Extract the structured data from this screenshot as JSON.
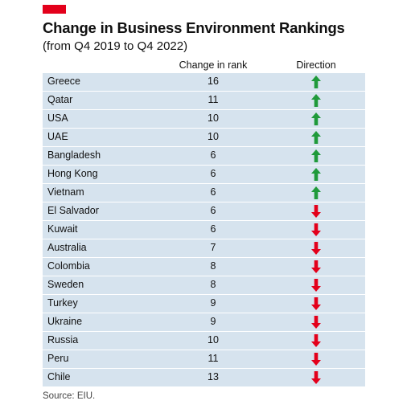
{
  "chart_data": {
    "type": "table",
    "title": "Change in Business Environment Rankings",
    "subtitle": "(from Q4 2019 to Q4 2022)",
    "columns": [
      "Change in rank",
      "Direction"
    ],
    "rows": [
      {
        "country": "Greece",
        "change": "16",
        "direction": "up"
      },
      {
        "country": "Qatar",
        "change": "11",
        "direction": "up"
      },
      {
        "country": "USA",
        "change": "10",
        "direction": "up"
      },
      {
        "country": "UAE",
        "change": "10",
        "direction": "up"
      },
      {
        "country": "Bangladesh",
        "change": "6",
        "direction": "up"
      },
      {
        "country": "Hong Kong",
        "change": "6",
        "direction": "up"
      },
      {
        "country": "Vietnam",
        "change": "6",
        "direction": "up"
      },
      {
        "country": "El Salvador",
        "change": "6",
        "direction": "down"
      },
      {
        "country": "Kuwait",
        "change": "6",
        "direction": "down"
      },
      {
        "country": "Australia",
        "change": "7",
        "direction": "down"
      },
      {
        "country": "Colombia",
        "change": "8",
        "direction": "down"
      },
      {
        "country": "Sweden",
        "change": "8",
        "direction": "down"
      },
      {
        "country": "Turkey",
        "change": "9",
        "direction": "down"
      },
      {
        "country": "Ukraine",
        "change": "9",
        "direction": "down"
      },
      {
        "country": "Russia",
        "change": "10",
        "direction": "down"
      },
      {
        "country": "Peru",
        "change": "11",
        "direction": "down"
      },
      {
        "country": "Chile",
        "change": "13",
        "direction": "down"
      }
    ],
    "source": "Source: EIU.",
    "colors": {
      "up": "#1f9a3a",
      "down": "#e3001b",
      "row_background": "#d6e3ee",
      "brand": "#e3001b"
    }
  }
}
